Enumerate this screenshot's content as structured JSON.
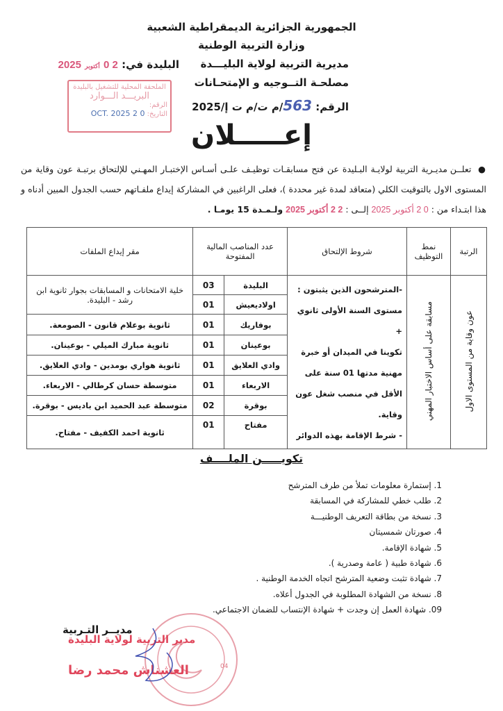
{
  "header": {
    "republic": "الجمهورية الجزائرية الديمقراطية الشعبية",
    "ministry": "وزارة التربية الوطنية"
  },
  "sender": {
    "directorate": "مديرية التربية لولاية البليـــدة",
    "service": "مصلحـة التــوجيه و الإمتحـانات",
    "ref_label": "الرقم:",
    "ref_number": "563",
    "ref_suffix": "/م ت/م ت إ/2025"
  },
  "place_date": {
    "label": "البليدة في:",
    "day": "2 0",
    "month": "أكتوبر",
    "year": "2025"
  },
  "received_stamp": {
    "line1": "الملحقة المحلية للتشغيل بالبليدة",
    "line2": "البريـــد الـــوارد",
    "number_label": "الرقم:",
    "date_label": "التاريخ:",
    "date": "0 2 OCT. 2025"
  },
  "title": "إعـــــلان",
  "intro": {
    "text": "تعلــن مديـرية التربية لولايـة البـليدة عن فتح مسابقـات توظيـف علـى أسـاس الإختبـار المهـني للإلتحاق برتبـة عون وقاية من المستوى الاول بالتوقيت الكلي (متعاقد لمدة غير محددة )، فعلى الراغبين في المشاركة إيداع ملفـاتهم حسب الجدول المبين أدناه و هذا ابتـداء من :",
    "from_date": "0 2 أكتوبر 2025",
    "to_label": "إلــى :",
    "to_date": "2 2 أكتوبر 2025",
    "duration": "ولـمـدة 15 يومـا ."
  },
  "table": {
    "headers": {
      "grade": "الرتبة",
      "mode": "نمط التوظيف",
      "conditions": "شروط الإلتحاق",
      "posts": "عدد المناصب المالية المفتوحة",
      "deposit": "مقر إيداع الملفات"
    },
    "grade": "عون وقاية من المستوى الاول",
    "mode": "مسابقة على أساس الاختبار المهني",
    "conditions": [
      "-المترشحون الذين يثبتون :",
      "مستوى السنة الأولى ثانوي +",
      "تكوينا في الميدان أو خبرة",
      "مهنية مدتها 01 سنة على",
      "الأقل في منصب شغل عون",
      "وقاية.",
      "- شرط الإقامة بهذه الدوائر"
    ],
    "rows": [
      {
        "district": "البليدة",
        "posts": "03"
      },
      {
        "district": "اولاديعيش",
        "posts": "01"
      },
      {
        "district": "بوفاريك",
        "posts": "01"
      },
      {
        "district": "بوعينان",
        "posts": "01"
      },
      {
        "district": "وادي العلايق",
        "posts": "01"
      },
      {
        "district": "الاربعاء",
        "posts": "01"
      },
      {
        "district": "بوقرة",
        "posts": "02"
      },
      {
        "district": "مفتاح",
        "posts": "01"
      }
    ],
    "deposits": [
      "خلية الامتحانات و المسابقات بجوار ثانوية ابن رشد - البليدة.",
      "ثانوية بوعلام قانون - الصومعة.",
      "ثانوية مبارك الميلي - بوعينان.",
      "ثانوية هواري بومدين - وادي العلايق.",
      "متوسطة حسان كرطالي - الاربعاء.",
      "متوسطة عبد الحميد ابن باديس - بوقرة.",
      "ثانوية احمد الكفيف - مفتاح."
    ]
  },
  "file_section": {
    "title": "تكويـــــن الملــــف",
    "items": [
      "1. إستمارة معلومات تملأ من طرف المترشح",
      "2. طلب خطي للمشاركة في المسابقة",
      "3. نسخة من بطاقة التعريف الوطنيـــة",
      "4. صورتان شمسيتان",
      "5. شهادة الإقامة.",
      "6. شهادة طبية ( عامة وصدرية ).",
      "7. شهادة تثبت وضعية المترشح اتجاه الخدمة الوطنية .",
      "8. نسخة من الشهادة المطلوبة في الجدول أعلاه.",
      "09. شهادة العمل إن وجدت + شهادة الإنتساب للضمان الاجتماعي."
    ]
  },
  "signature": {
    "title": "مديــر التـربية",
    "stamp_line1": "مدير التربية لولاية البليدة",
    "stamp_name": "العشناش محمد رضا",
    "seal_number": "04"
  },
  "colors": {
    "stamp_red": "#e0475c",
    "ink_blue": "#3f4fb0",
    "date_pink": "#d9557a"
  }
}
